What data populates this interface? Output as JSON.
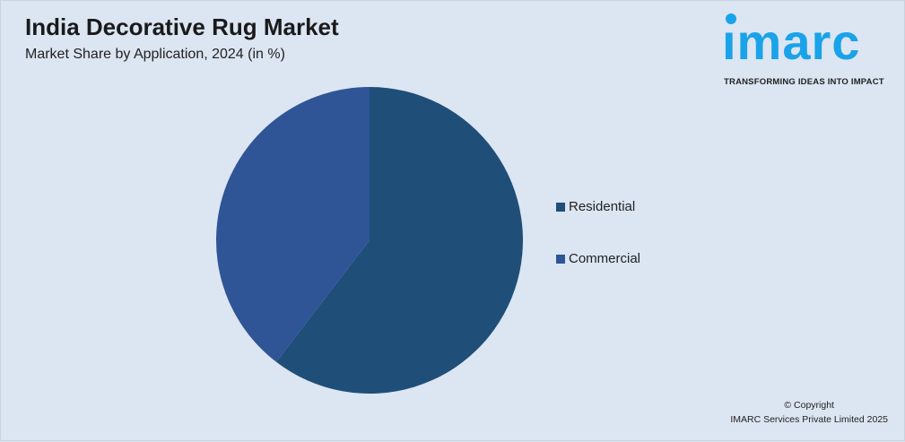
{
  "header": {
    "title": "India Decorative Rug Market",
    "subtitle": "Market Share by Application, 2024 (in %)"
  },
  "logo": {
    "word": "imarc",
    "tagline": "TRANSFORMING IDEAS INTO IMPACT",
    "color": "#1aa3e8"
  },
  "footer": {
    "copyright": "© Copyright",
    "company": "IMARC Services Private Limited 2025"
  },
  "chart_data": {
    "type": "pie",
    "title": "India Decorative Rug Market",
    "subtitle": "Market Share by Application, 2024 (in %)",
    "categories": [
      "Residential",
      "Commercial"
    ],
    "values": [
      60.4,
      39.6
    ],
    "colors": [
      "#1f4e79",
      "#2f5597"
    ],
    "start_angle": "top, clockwise",
    "legend": "right"
  }
}
